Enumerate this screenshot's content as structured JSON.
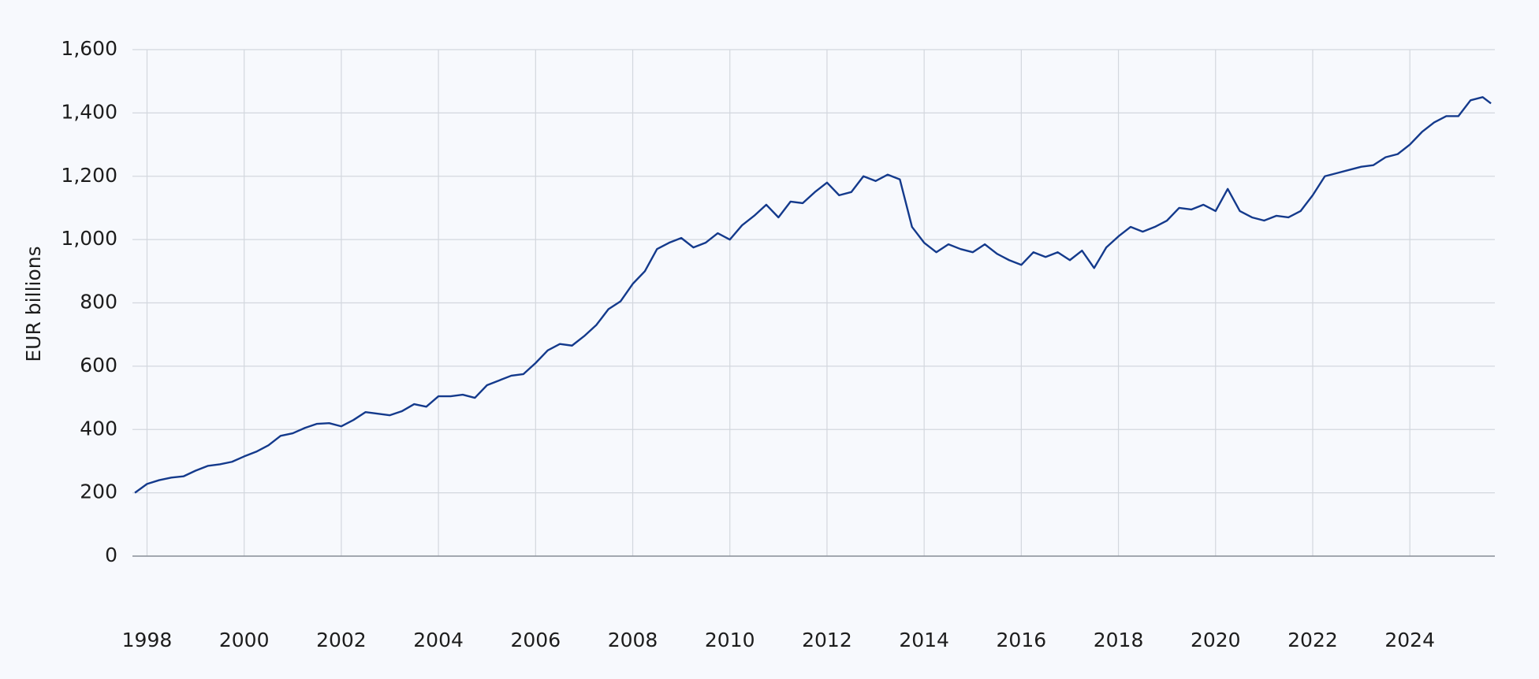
{
  "chart_data": {
    "type": "line",
    "y_label": "EUR billions",
    "x": [
      1997.75,
      1998,
      1998.25,
      1998.5,
      1998.75,
      1999,
      1999.25,
      1999.5,
      1999.75,
      2000,
      2000.25,
      2000.5,
      2000.75,
      2001,
      2001.25,
      2001.5,
      2001.75,
      2002,
      2002.25,
      2002.5,
      2002.75,
      2003,
      2003.25,
      2003.5,
      2003.75,
      2004,
      2004.25,
      2004.5,
      2004.75,
      2005,
      2005.25,
      2005.5,
      2005.75,
      2006,
      2006.25,
      2006.5,
      2006.75,
      2007,
      2007.25,
      2007.5,
      2007.75,
      2008,
      2008.25,
      2008.5,
      2008.75,
      2009,
      2009.25,
      2009.5,
      2009.75,
      2010,
      2010.25,
      2010.5,
      2010.75,
      2011,
      2011.25,
      2011.5,
      2011.75,
      2012,
      2012.25,
      2012.5,
      2012.75,
      2013,
      2013.25,
      2013.5,
      2013.75,
      2014,
      2014.25,
      2014.5,
      2014.75,
      2015,
      2015.25,
      2015.5,
      2015.75,
      2016,
      2016.25,
      2016.5,
      2016.75,
      2017,
      2017.25,
      2017.5,
      2017.75,
      2018,
      2018.25,
      2018.5,
      2018.75,
      2019,
      2019.25,
      2019.5,
      2019.75,
      2020,
      2020.25,
      2020.5,
      2020.75,
      2021,
      2021.25,
      2021.5,
      2021.75,
      2022,
      2022.25,
      2022.5,
      2022.75,
      2023,
      2023.25,
      2023.5,
      2023.75,
      2024,
      2024.25,
      2024.5,
      2024.75,
      2025,
      2025.25,
      2025.5,
      2025.67
    ],
    "series": [
      {
        "name": "EUR billions",
        "color": "#143a8c",
        "values": [
          200,
          228,
          240,
          248,
          252,
          270,
          285,
          290,
          298,
          315,
          330,
          350,
          380,
          388,
          405,
          418,
          420,
          410,
          430,
          455,
          450,
          445,
          458,
          480,
          472,
          505,
          505,
          510,
          500,
          540,
          555,
          570,
          575,
          610,
          650,
          670,
          665,
          695,
          730,
          780,
          805,
          860,
          900,
          970,
          990,
          1005,
          975,
          990,
          1020,
          1000,
          1045,
          1075,
          1110,
          1070,
          1120,
          1115,
          1150,
          1180,
          1140,
          1150,
          1200,
          1185,
          1205,
          1190,
          1040,
          990,
          960,
          985,
          970,
          960,
          985,
          955,
          935,
          920,
          960,
          945,
          960,
          935,
          965,
          910,
          975,
          1010,
          1040,
          1025,
          1040,
          1060,
          1100,
          1095,
          1110,
          1090,
          1160,
          1090,
          1070,
          1060,
          1075,
          1070,
          1090,
          1140,
          1200,
          1210,
          1220,
          1230,
          1235,
          1260,
          1270,
          1300,
          1340,
          1370,
          1390,
          1390,
          1440,
          1450,
          1430
        ]
      }
    ],
    "xlim": [
      1997.7,
      2025.75
    ],
    "xticks": [
      1998,
      2000,
      2002,
      2004,
      2006,
      2008,
      2010,
      2012,
      2014,
      2016,
      2018,
      2020,
      2022,
      2024
    ],
    "ylim": [
      0,
      1600
    ],
    "yticks": [
      0,
      200,
      400,
      600,
      800,
      {
        "value": 1000,
        "label": "1,000"
      },
      {
        "value": 1200,
        "label": "1,200"
      },
      {
        "value": 1400,
        "label": "1,400"
      },
      {
        "value": 1600,
        "label": "1,600"
      }
    ],
    "grid": true
  }
}
